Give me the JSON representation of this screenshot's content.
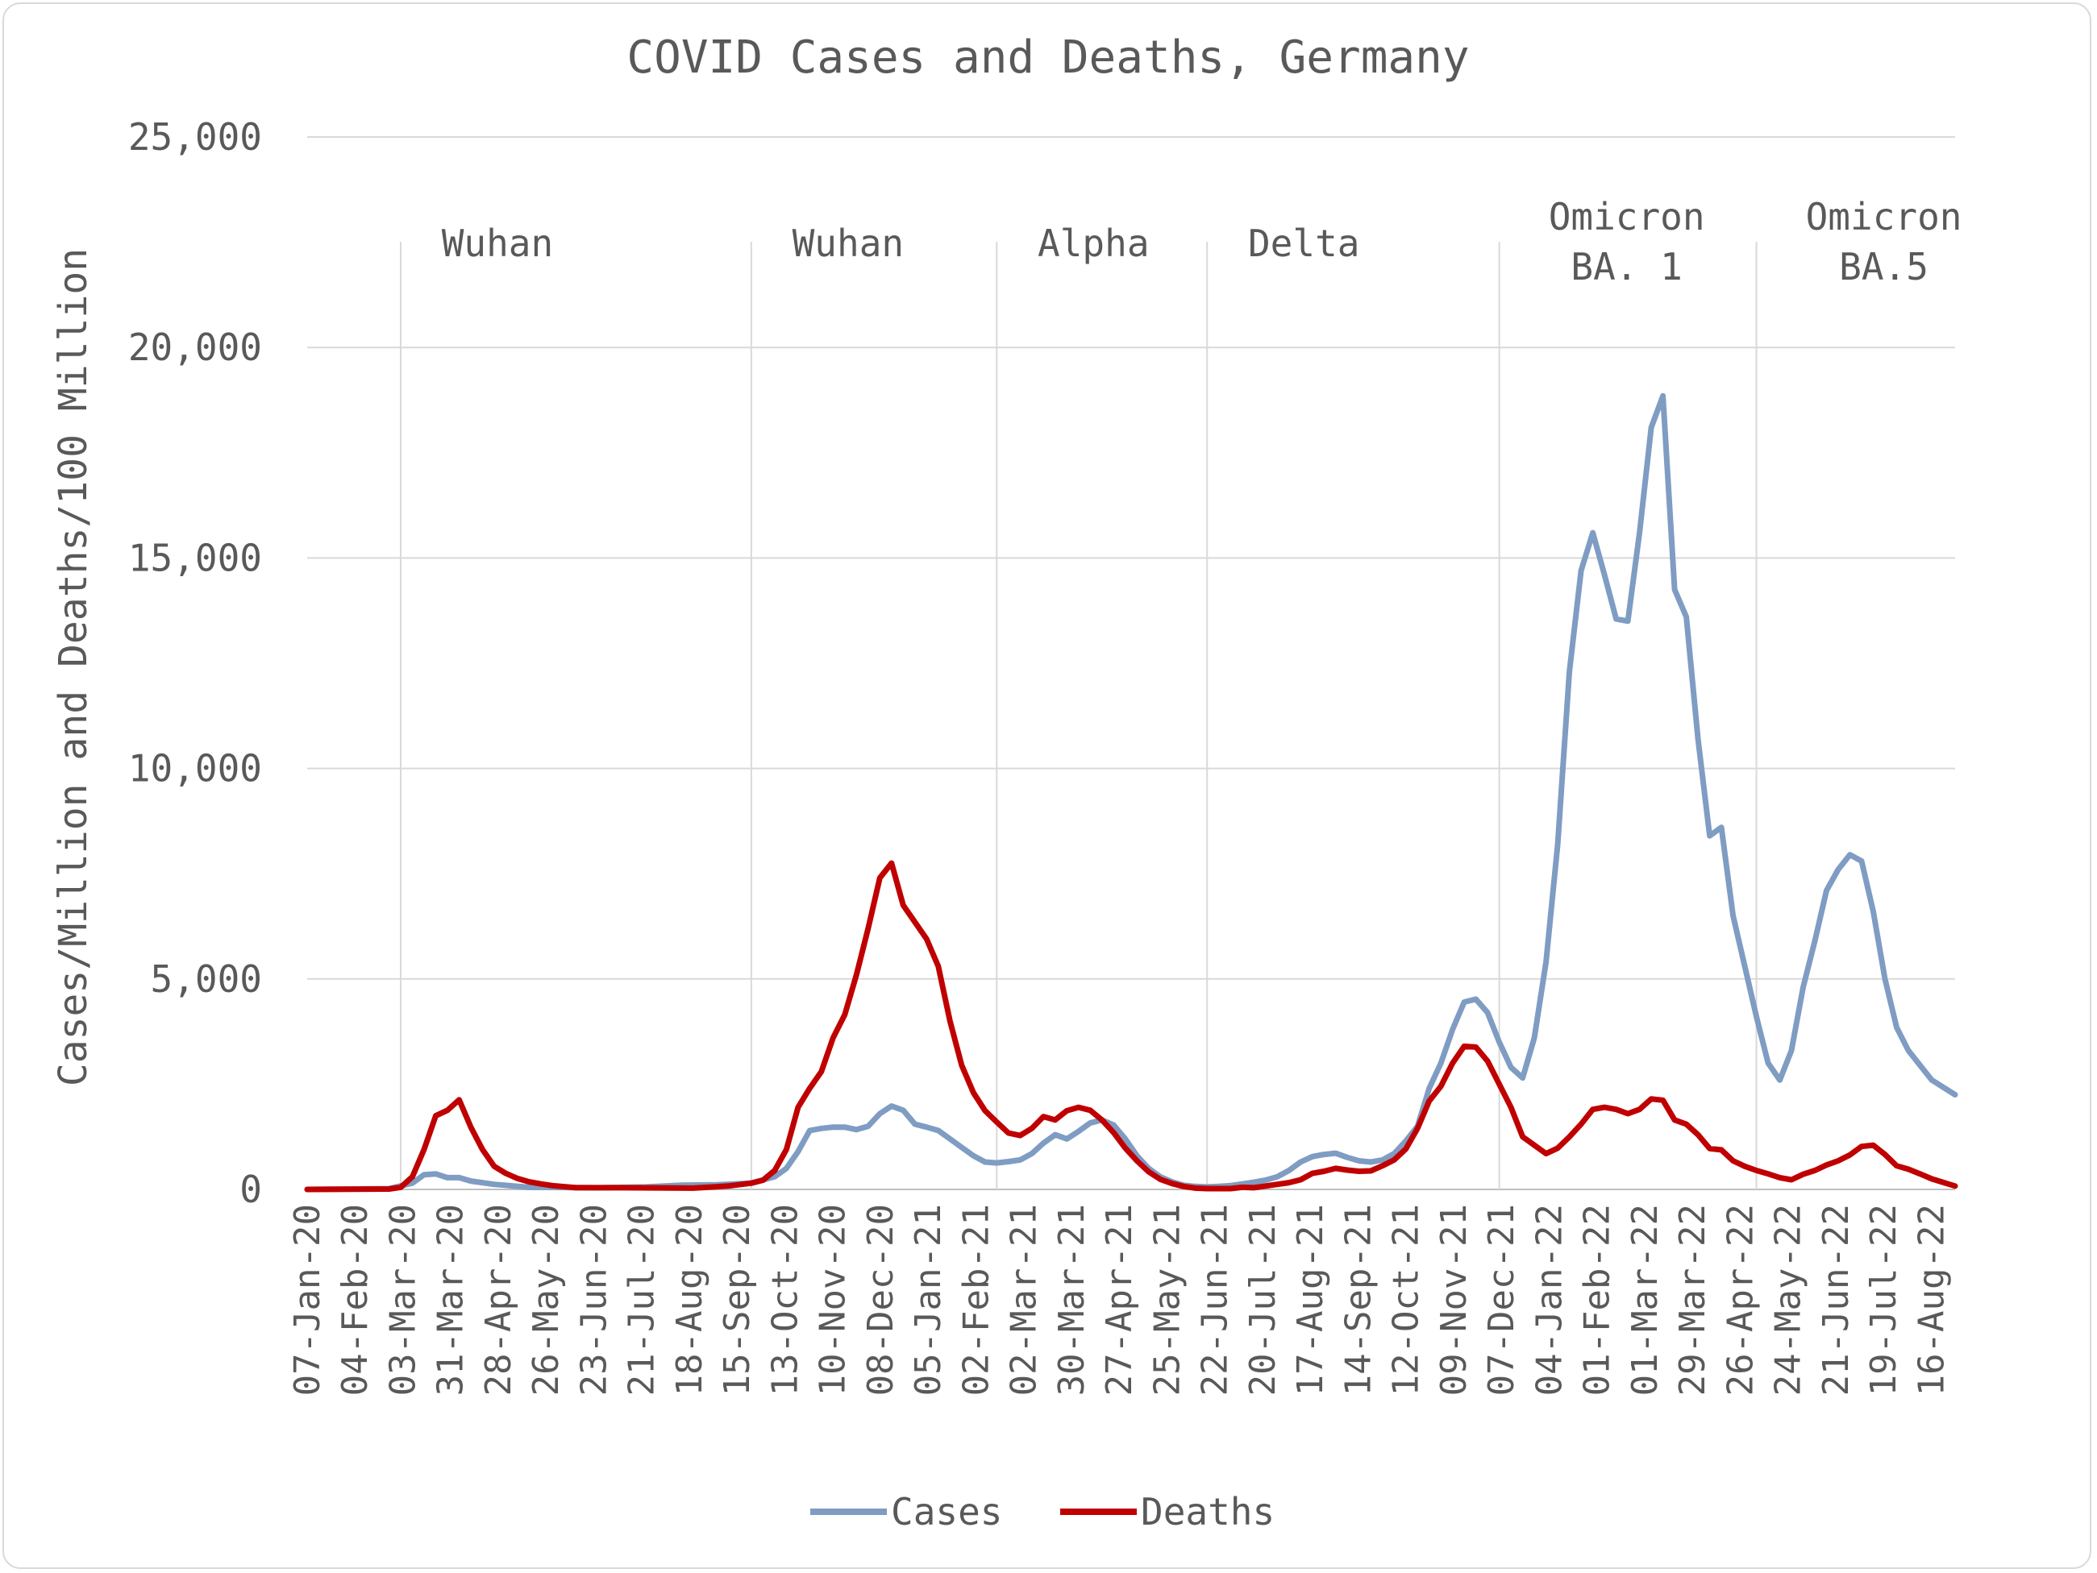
{
  "chart_data": {
    "type": "line",
    "title": "COVID Cases and Deaths, Germany",
    "xlabel": "",
    "ylabel": "Cases/Million and Deaths/100 Million",
    "ylim": [
      0,
      25000
    ],
    "yticks": [
      0,
      5000,
      10000,
      15000,
      20000,
      25000
    ],
    "ytick_labels": [
      "0",
      "5,000",
      "10,000",
      "15,000",
      "20,000",
      "25,000"
    ],
    "x_start": "2020-01-07",
    "x_end": "2022-09-20",
    "x_tick_labels": [
      "07-Jan-20",
      "04-Feb-20",
      "03-Mar-20",
      "31-Mar-20",
      "28-Apr-20",
      "26-May-20",
      "23-Jun-20",
      "21-Jul-20",
      "18-Aug-20",
      "15-Sep-20",
      "13-Oct-20",
      "10-Nov-20",
      "08-Dec-20",
      "05-Jan-21",
      "02-Feb-21",
      "02-Mar-21",
      "30-Mar-21",
      "27-Apr-21",
      "25-May-21",
      "22-Jun-21",
      "20-Jul-21",
      "17-Aug-21",
      "14-Sep-21",
      "12-Oct-21",
      "09-Nov-21",
      "07-Dec-21",
      "04-Jan-22",
      "01-Feb-22",
      "01-Mar-22",
      "29-Mar-22",
      "26-Apr-22",
      "24-May-22",
      "21-Jun-22",
      "19-Jul-22",
      "16-Aug-22"
    ],
    "grid": true,
    "legend": "bottom",
    "waves": [
      {
        "label": "Wuhan",
        "start": "2020-03-03"
      },
      {
        "label": "Wuhan",
        "start": "2020-09-29"
      },
      {
        "label": "Alpha",
        "start": "2021-02-23"
      },
      {
        "label": "Delta",
        "start": "2021-06-29"
      },
      {
        "label": "Omicron\nBA. 1",
        "start": "2021-12-21"
      },
      {
        "label": "Omicron\nBA.5",
        "start": "2022-05-24"
      }
    ],
    "series": [
      {
        "name": "Cases",
        "color": "#7f9cc3",
        "points": [
          [
            "2020-01-07",
            0
          ],
          [
            "2020-02-25",
            20
          ],
          [
            "2020-03-10",
            150
          ],
          [
            "2020-03-17",
            350
          ],
          [
            "2020-03-24",
            370
          ],
          [
            "2020-03-31",
            280
          ],
          [
            "2020-04-07",
            280
          ],
          [
            "2020-04-14",
            200
          ],
          [
            "2020-04-28",
            120
          ],
          [
            "2020-05-19",
            50
          ],
          [
            "2020-06-30",
            40
          ],
          [
            "2020-07-28",
            60
          ],
          [
            "2020-08-18",
            100
          ],
          [
            "2020-09-08",
            110
          ],
          [
            "2020-09-29",
            150
          ],
          [
            "2020-10-13",
            300
          ],
          [
            "2020-10-20",
            500
          ],
          [
            "2020-10-27",
            900
          ],
          [
            "2020-11-03",
            1400
          ],
          [
            "2020-11-10",
            1450
          ],
          [
            "2020-11-17",
            1480
          ],
          [
            "2020-11-24",
            1480
          ],
          [
            "2020-12-01",
            1420
          ],
          [
            "2020-12-08",
            1500
          ],
          [
            "2020-12-15",
            1800
          ],
          [
            "2020-12-22",
            1980
          ],
          [
            "2020-12-29",
            1880
          ],
          [
            "2021-01-05",
            1550
          ],
          [
            "2021-01-12",
            1480
          ],
          [
            "2021-01-19",
            1400
          ],
          [
            "2021-01-26",
            1200
          ],
          [
            "2021-02-02",
            1000
          ],
          [
            "2021-02-09",
            800
          ],
          [
            "2021-02-16",
            650
          ],
          [
            "2021-02-23",
            630
          ],
          [
            "2021-03-02",
            660
          ],
          [
            "2021-03-09",
            700
          ],
          [
            "2021-03-16",
            850
          ],
          [
            "2021-03-23",
            1100
          ],
          [
            "2021-03-30",
            1300
          ],
          [
            "2021-04-06",
            1200
          ],
          [
            "2021-04-13",
            1380
          ],
          [
            "2021-04-20",
            1580
          ],
          [
            "2021-04-27",
            1650
          ],
          [
            "2021-05-04",
            1530
          ],
          [
            "2021-05-11",
            1200
          ],
          [
            "2021-05-18",
            800
          ],
          [
            "2021-05-25",
            500
          ],
          [
            "2021-06-01",
            300
          ],
          [
            "2021-06-08",
            180
          ],
          [
            "2021-06-15",
            100
          ],
          [
            "2021-06-22",
            70
          ],
          [
            "2021-06-29",
            60
          ],
          [
            "2021-07-06",
            70
          ],
          [
            "2021-07-13",
            90
          ],
          [
            "2021-07-20",
            130
          ],
          [
            "2021-07-27",
            170
          ],
          [
            "2021-08-03",
            220
          ],
          [
            "2021-08-10",
            300
          ],
          [
            "2021-08-17",
            450
          ],
          [
            "2021-08-24",
            650
          ],
          [
            "2021-08-31",
            780
          ],
          [
            "2021-09-07",
            830
          ],
          [
            "2021-09-14",
            860
          ],
          [
            "2021-09-21",
            760
          ],
          [
            "2021-09-28",
            680
          ],
          [
            "2021-10-05",
            650
          ],
          [
            "2021-10-12",
            700
          ],
          [
            "2021-10-19",
            850
          ],
          [
            "2021-10-26",
            1150
          ],
          [
            "2021-11-02",
            1500
          ],
          [
            "2021-11-09",
            2400
          ],
          [
            "2021-11-16",
            3000
          ],
          [
            "2021-11-23",
            3800
          ],
          [
            "2021-11-30",
            4450
          ],
          [
            "2021-12-07",
            4520
          ],
          [
            "2021-12-14",
            4200
          ],
          [
            "2021-12-21",
            3500
          ],
          [
            "2021-12-28",
            2900
          ],
          [
            "2022-01-04",
            2650
          ],
          [
            "2022-01-11",
            3600
          ],
          [
            "2022-01-18",
            5400
          ],
          [
            "2022-01-25",
            8200
          ],
          [
            "2022-02-01",
            12300
          ],
          [
            "2022-02-08",
            14700
          ],
          [
            "2022-02-15",
            15600
          ],
          [
            "2022-02-22",
            14600
          ],
          [
            "2022-03-01",
            13550
          ],
          [
            "2022-03-08",
            13500
          ],
          [
            "2022-03-15",
            15600
          ],
          [
            "2022-03-22",
            18100
          ],
          [
            "2022-03-29",
            18850
          ],
          [
            "2022-04-05",
            14250
          ],
          [
            "2022-04-12",
            13600
          ],
          [
            "2022-04-19",
            10700
          ],
          [
            "2022-04-26",
            8400
          ],
          [
            "2022-05-03",
            8600
          ],
          [
            "2022-05-10",
            6500
          ],
          [
            "2022-05-17",
            5300
          ],
          [
            "2022-05-24",
            4100
          ],
          [
            "2022-05-31",
            3000
          ],
          [
            "2022-06-07",
            2600
          ],
          [
            "2022-06-14",
            3300
          ],
          [
            "2022-06-21",
            4800
          ],
          [
            "2022-06-28",
            5900
          ],
          [
            "2022-07-05",
            7100
          ],
          [
            "2022-07-12",
            7600
          ],
          [
            "2022-07-19",
            7950
          ],
          [
            "2022-07-26",
            7800
          ],
          [
            "2022-08-02",
            6600
          ],
          [
            "2022-08-09",
            5000
          ],
          [
            "2022-08-16",
            3850
          ],
          [
            "2022-08-23",
            3300
          ],
          [
            "2022-08-30",
            2950
          ],
          [
            "2022-09-06",
            2600
          ],
          [
            "2022-09-20",
            2250
          ]
        ]
      },
      {
        "name": "Deaths",
        "color": "#c00000",
        "points": [
          [
            "2020-01-07",
            0
          ],
          [
            "2020-02-25",
            10
          ],
          [
            "2020-03-03",
            50
          ],
          [
            "2020-03-10",
            300
          ],
          [
            "2020-03-17",
            950
          ],
          [
            "2020-03-24",
            1750
          ],
          [
            "2020-03-31",
            1880
          ],
          [
            "2020-04-07",
            2130
          ],
          [
            "2020-04-14",
            1480
          ],
          [
            "2020-04-21",
            950
          ],
          [
            "2020-04-28",
            550
          ],
          [
            "2020-05-05",
            380
          ],
          [
            "2020-05-12",
            260
          ],
          [
            "2020-05-19",
            180
          ],
          [
            "2020-05-26",
            130
          ],
          [
            "2020-06-02",
            90
          ],
          [
            "2020-06-16",
            40
          ],
          [
            "2020-07-14",
            40
          ],
          [
            "2020-08-25",
            30
          ],
          [
            "2020-09-15",
            80
          ],
          [
            "2020-09-29",
            150
          ],
          [
            "2020-10-06",
            220
          ],
          [
            "2020-10-13",
            450
          ],
          [
            "2020-10-20",
            950
          ],
          [
            "2020-10-27",
            1950
          ],
          [
            "2020-11-03",
            2400
          ],
          [
            "2020-11-10",
            2800
          ],
          [
            "2020-11-17",
            3600
          ],
          [
            "2020-11-24",
            4150
          ],
          [
            "2020-12-01",
            5100
          ],
          [
            "2020-12-08",
            6200
          ],
          [
            "2020-12-15",
            7400
          ],
          [
            "2020-12-22",
            7750
          ],
          [
            "2020-12-29",
            6750
          ],
          [
            "2021-01-05",
            6350
          ],
          [
            "2021-01-12",
            5950
          ],
          [
            "2021-01-19",
            5300
          ],
          [
            "2021-01-26",
            4000
          ],
          [
            "2021-02-02",
            2950
          ],
          [
            "2021-02-09",
            2300
          ],
          [
            "2021-02-16",
            1870
          ],
          [
            "2021-02-23",
            1600
          ],
          [
            "2021-03-02",
            1340
          ],
          [
            "2021-03-09",
            1280
          ],
          [
            "2021-03-16",
            1450
          ],
          [
            "2021-03-23",
            1730
          ],
          [
            "2021-03-30",
            1650
          ],
          [
            "2021-04-06",
            1870
          ],
          [
            "2021-04-13",
            1950
          ],
          [
            "2021-04-20",
            1880
          ],
          [
            "2021-04-27",
            1650
          ],
          [
            "2021-05-04",
            1350
          ],
          [
            "2021-05-11",
            980
          ],
          [
            "2021-05-18",
            680
          ],
          [
            "2021-05-25",
            420
          ],
          [
            "2021-06-01",
            240
          ],
          [
            "2021-06-08",
            140
          ],
          [
            "2021-06-15",
            70
          ],
          [
            "2021-06-22",
            30
          ],
          [
            "2021-06-29",
            20
          ],
          [
            "2021-07-13",
            20
          ],
          [
            "2021-07-20",
            50
          ],
          [
            "2021-07-27",
            40
          ],
          [
            "2021-08-03",
            80
          ],
          [
            "2021-08-10",
            120
          ],
          [
            "2021-08-17",
            160
          ],
          [
            "2021-08-24",
            230
          ],
          [
            "2021-08-31",
            380
          ],
          [
            "2021-09-07",
            430
          ],
          [
            "2021-09-14",
            500
          ],
          [
            "2021-09-21",
            460
          ],
          [
            "2021-09-28",
            430
          ],
          [
            "2021-10-05",
            440
          ],
          [
            "2021-10-12",
            560
          ],
          [
            "2021-10-19",
            700
          ],
          [
            "2021-10-26",
            960
          ],
          [
            "2021-11-02",
            1450
          ],
          [
            "2021-11-09",
            2100
          ],
          [
            "2021-11-16",
            2450
          ],
          [
            "2021-11-23",
            3000
          ],
          [
            "2021-11-30",
            3400
          ],
          [
            "2021-12-07",
            3380
          ],
          [
            "2021-12-14",
            3050
          ],
          [
            "2021-12-21",
            2500
          ],
          [
            "2021-12-28",
            1950
          ],
          [
            "2022-01-04",
            1250
          ],
          [
            "2022-01-11",
            1050
          ],
          [
            "2022-01-18",
            850
          ],
          [
            "2022-01-25",
            980
          ],
          [
            "2022-02-01",
            1250
          ],
          [
            "2022-02-08",
            1550
          ],
          [
            "2022-02-15",
            1900
          ],
          [
            "2022-02-22",
            1950
          ],
          [
            "2022-03-01",
            1900
          ],
          [
            "2022-03-08",
            1800
          ],
          [
            "2022-03-15",
            1900
          ],
          [
            "2022-03-22",
            2150
          ],
          [
            "2022-03-29",
            2120
          ],
          [
            "2022-04-05",
            1650
          ],
          [
            "2022-04-12",
            1550
          ],
          [
            "2022-04-19",
            1300
          ],
          [
            "2022-04-26",
            970
          ],
          [
            "2022-05-03",
            940
          ],
          [
            "2022-05-10",
            680
          ],
          [
            "2022-05-17",
            550
          ],
          [
            "2022-05-24",
            450
          ],
          [
            "2022-05-31",
            370
          ],
          [
            "2022-06-07",
            280
          ],
          [
            "2022-06-14",
            230
          ],
          [
            "2022-06-21",
            360
          ],
          [
            "2022-06-28",
            450
          ],
          [
            "2022-07-05",
            580
          ],
          [
            "2022-07-12",
            680
          ],
          [
            "2022-07-19",
            820
          ],
          [
            "2022-07-26",
            1020
          ],
          [
            "2022-08-02",
            1050
          ],
          [
            "2022-08-09",
            830
          ],
          [
            "2022-08-16",
            560
          ],
          [
            "2022-08-23",
            480
          ],
          [
            "2022-08-30",
            370
          ],
          [
            "2022-09-06",
            250
          ],
          [
            "2022-09-20",
            80
          ]
        ]
      }
    ]
  }
}
